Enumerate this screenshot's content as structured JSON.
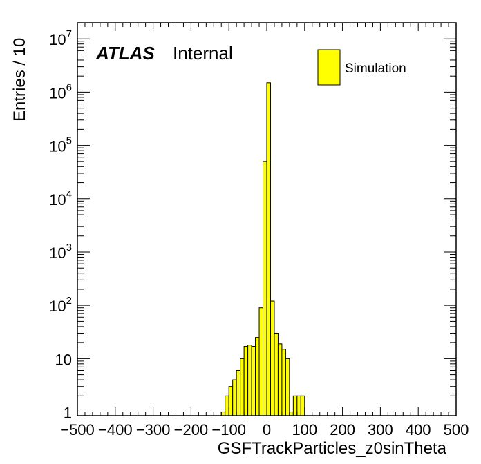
{
  "chart_data": {
    "type": "bar",
    "subtype": "histogram",
    "title": "",
    "experiment_label": "ATLAS",
    "status_label": "Internal",
    "xlabel": "GSFTrackParticles_z0sinTheta",
    "ylabel": "Entries / 10",
    "x_range": [
      -500,
      500
    ],
    "bin_width": 10,
    "yscale": "log",
    "ylim": [
      0.85,
      20000000
    ],
    "fill_color": "#ffff00",
    "line_color": "#000000",
    "legend": {
      "position": "top-right",
      "entries": [
        "Simulation"
      ]
    },
    "x_tick_labels": [
      "−500",
      "−400",
      "−300",
      "−200",
      "−100",
      "0",
      "100",
      "200",
      "300",
      "400",
      "500"
    ],
    "y_tick_labels": [
      {
        "value": 1,
        "base": "1",
        "exp": ""
      },
      {
        "value": 10,
        "base": "10",
        "exp": ""
      },
      {
        "value": 100,
        "base": "10",
        "exp": "2"
      },
      {
        "value": 1000,
        "base": "10",
        "exp": "3"
      },
      {
        "value": 10000,
        "base": "10",
        "exp": "4"
      },
      {
        "value": 100000,
        "base": "10",
        "exp": "5"
      },
      {
        "value": 1000000,
        "base": "10",
        "exp": "6"
      },
      {
        "value": 10000000,
        "base": "10",
        "exp": "7"
      }
    ],
    "bins": [
      {
        "x_low": -120,
        "x_high": -110,
        "value": 1
      },
      {
        "x_low": -110,
        "x_high": -100,
        "value": 2
      },
      {
        "x_low": -100,
        "x_high": -90,
        "value": 3
      },
      {
        "x_low": -90,
        "x_high": -80,
        "value": 4
      },
      {
        "x_low": -80,
        "x_high": -70,
        "value": 6
      },
      {
        "x_low": -70,
        "x_high": -60,
        "value": 10
      },
      {
        "x_low": -60,
        "x_high": -50,
        "value": 17
      },
      {
        "x_low": -50,
        "x_high": -40,
        "value": 18
      },
      {
        "x_low": -40,
        "x_high": -30,
        "value": 17
      },
      {
        "x_low": -30,
        "x_high": -20,
        "value": 25
      },
      {
        "x_low": -20,
        "x_high": -10,
        "value": 90
      },
      {
        "x_low": -10,
        "x_high": 0,
        "value": 50000
      },
      {
        "x_low": 0,
        "x_high": 10,
        "value": 1500000
      },
      {
        "x_low": 10,
        "x_high": 20,
        "value": 120
      },
      {
        "x_low": 20,
        "x_high": 30,
        "value": 30
      },
      {
        "x_low": 30,
        "x_high": 40,
        "value": 19
      },
      {
        "x_low": 40,
        "x_high": 50,
        "value": 15
      },
      {
        "x_low": 50,
        "x_high": 60,
        "value": 10
      },
      {
        "x_low": 60,
        "x_high": 70,
        "value": 1
      },
      {
        "x_low": 70,
        "x_high": 80,
        "value": 2
      },
      {
        "x_low": 80,
        "x_high": 90,
        "value": 2
      },
      {
        "x_low": 90,
        "x_high": 100,
        "value": 2
      }
    ]
  }
}
